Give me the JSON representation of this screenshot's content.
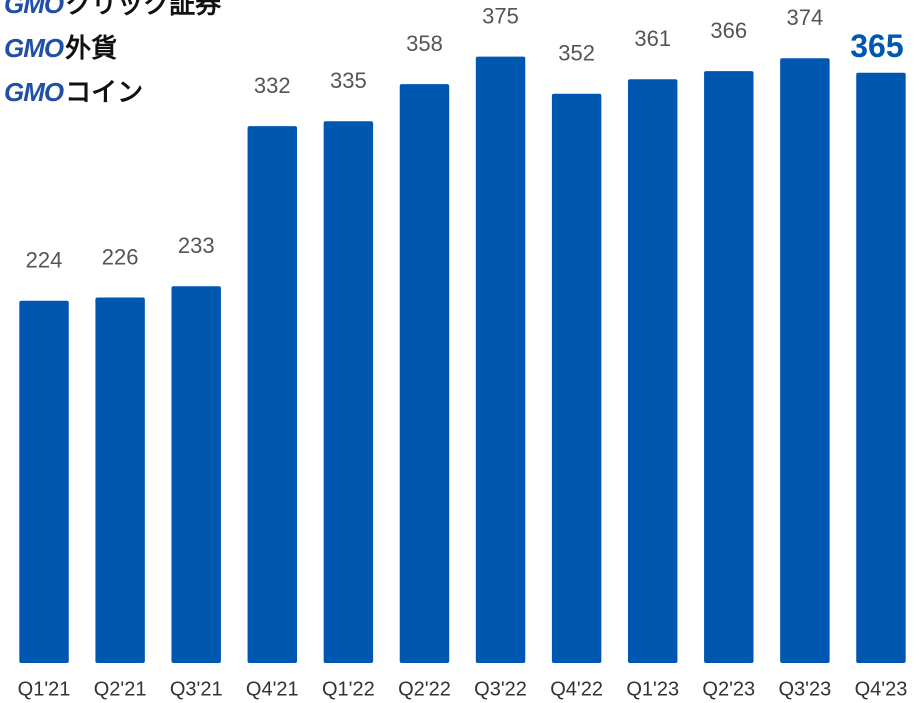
{
  "logos": [
    {
      "brand": "GMO",
      "name": "クリック証券"
    },
    {
      "brand": "GMO",
      "name": "外貨"
    },
    {
      "brand": "GMO",
      "name": "コイン"
    }
  ],
  "chart_data": {
    "type": "bar",
    "categories": [
      "Q1'21",
      "Q2'21",
      "Q3'21",
      "Q4'21",
      "Q1'22",
      "Q2'22",
      "Q3'22",
      "Q4'22",
      "Q1'23",
      "Q2'23",
      "Q3'23",
      "Q4'23"
    ],
    "values": [
      224,
      226,
      233,
      332,
      335,
      358,
      375,
      352,
      361,
      366,
      374,
      365
    ],
    "color": "#0057b0",
    "ylim": [
      0,
      410
    ]
  }
}
